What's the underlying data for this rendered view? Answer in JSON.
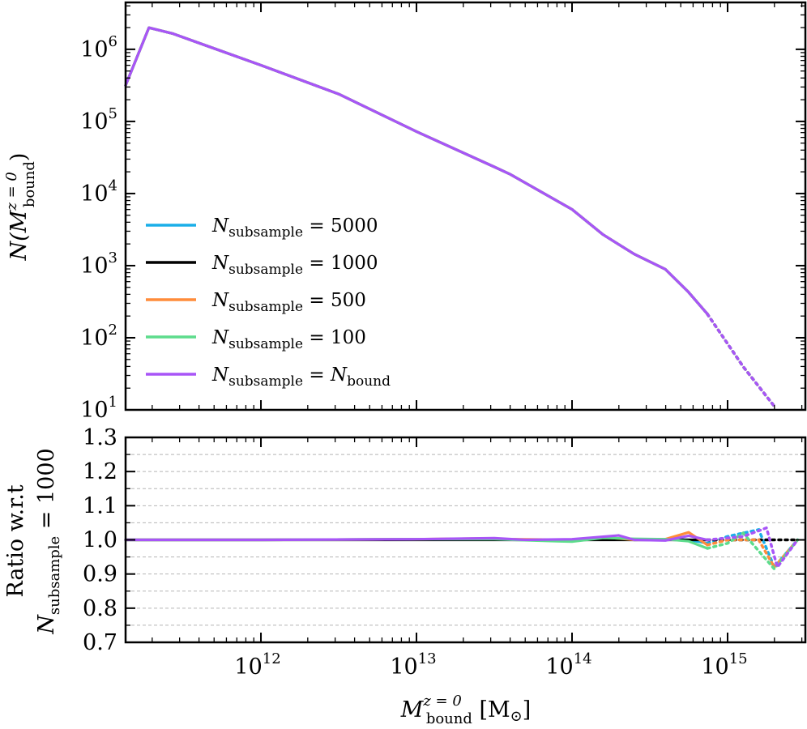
{
  "chart_data": [
    {
      "id": "top",
      "type": "line",
      "xscale": "log",
      "yscale": "log",
      "xlim_log10": [
        11.13,
        15.5
      ],
      "ylim_log10": [
        1.0,
        6.65
      ],
      "yticks": [
        {
          "exp": 1,
          "base": "10",
          "power": "1"
        },
        {
          "exp": 2,
          "base": "10",
          "power": "2"
        },
        {
          "exp": 3,
          "base": "10",
          "power": "3"
        },
        {
          "exp": 4,
          "base": "10",
          "power": "4"
        },
        {
          "exp": 5,
          "base": "10",
          "power": "5"
        },
        {
          "exp": 6,
          "base": "10",
          "power": "6"
        }
      ],
      "ylabel": {
        "main": "N(M",
        "sup": "z = 0",
        "sub": "bound",
        "close": ")"
      },
      "series": [
        {
          "name": "N_subsample = 5000",
          "color": "#1aaee8",
          "solid": [
            [
              11.13,
              5.5
            ],
            [
              11.28,
              6.3
            ],
            [
              11.43,
              6.22
            ],
            [
              12.0,
              5.78
            ],
            [
              12.5,
              5.38
            ],
            [
              13.0,
              4.86
            ],
            [
              13.5,
              4.37
            ],
            [
              13.6,
              4.27
            ],
            [
              14.0,
              3.78
            ],
            [
              14.2,
              3.43
            ],
            [
              14.4,
              3.16
            ],
            [
              14.6,
              2.95
            ],
            [
              14.75,
              2.63
            ],
            [
              14.87,
              2.33
            ]
          ],
          "dotted": [
            [
              14.87,
              2.33
            ],
            [
              15.1,
              1.6
            ],
            [
              15.3,
              1.05
            ]
          ]
        },
        {
          "name": "N_subsample = 1000",
          "color": "#000000",
          "solid": [
            [
              11.13,
              5.5
            ],
            [
              11.28,
              6.3
            ],
            [
              11.43,
              6.22
            ],
            [
              12.0,
              5.78
            ],
            [
              12.5,
              5.38
            ],
            [
              13.0,
              4.86
            ],
            [
              13.5,
              4.37
            ],
            [
              13.6,
              4.27
            ],
            [
              14.0,
              3.78
            ],
            [
              14.2,
              3.43
            ],
            [
              14.4,
              3.16
            ],
            [
              14.6,
              2.95
            ],
            [
              14.75,
              2.63
            ],
            [
              14.87,
              2.33
            ]
          ],
          "dotted": [
            [
              14.87,
              2.33
            ],
            [
              15.1,
              1.6
            ],
            [
              15.3,
              1.05
            ]
          ]
        },
        {
          "name": "N_subsample = 500",
          "color": "#ff8c3a",
          "solid": [
            [
              11.13,
              5.5
            ],
            [
              11.28,
              6.3
            ],
            [
              11.43,
              6.22
            ],
            [
              12.0,
              5.78
            ],
            [
              12.5,
              5.38
            ],
            [
              13.0,
              4.86
            ],
            [
              13.5,
              4.37
            ],
            [
              13.6,
              4.27
            ],
            [
              14.0,
              3.78
            ],
            [
              14.2,
              3.43
            ],
            [
              14.4,
              3.16
            ],
            [
              14.6,
              2.95
            ],
            [
              14.75,
              2.63
            ],
            [
              14.87,
              2.33
            ]
          ],
          "dotted": [
            [
              14.87,
              2.33
            ],
            [
              15.1,
              1.6
            ],
            [
              15.3,
              1.05
            ]
          ]
        },
        {
          "name": "N_subsample = 100",
          "color": "#5ddc8c",
          "solid": [
            [
              11.13,
              5.5
            ],
            [
              11.28,
              6.3
            ],
            [
              11.43,
              6.22
            ],
            [
              12.0,
              5.78
            ],
            [
              12.5,
              5.38
            ],
            [
              13.0,
              4.86
            ],
            [
              13.5,
              4.37
            ],
            [
              13.6,
              4.27
            ],
            [
              14.0,
              3.78
            ],
            [
              14.2,
              3.43
            ],
            [
              14.4,
              3.16
            ],
            [
              14.6,
              2.95
            ],
            [
              14.75,
              2.63
            ],
            [
              14.87,
              2.33
            ]
          ],
          "dotted": [
            [
              14.87,
              2.33
            ],
            [
              15.1,
              1.6
            ],
            [
              15.3,
              1.05
            ]
          ]
        },
        {
          "name": "N_subsample = N_bound",
          "color": "#a855f7",
          "solid": [
            [
              11.13,
              5.5
            ],
            [
              11.28,
              6.3
            ],
            [
              11.43,
              6.22
            ],
            [
              12.0,
              5.78
            ],
            [
              12.5,
              5.38
            ],
            [
              13.0,
              4.86
            ],
            [
              13.5,
              4.37
            ],
            [
              13.6,
              4.27
            ],
            [
              14.0,
              3.78
            ],
            [
              14.2,
              3.43
            ],
            [
              14.4,
              3.16
            ],
            [
              14.6,
              2.95
            ],
            [
              14.75,
              2.63
            ],
            [
              14.87,
              2.33
            ]
          ],
          "dotted": [
            [
              14.87,
              2.33
            ],
            [
              15.1,
              1.6
            ],
            [
              15.3,
              1.05
            ]
          ]
        }
      ],
      "legend": {
        "placement": "lower-left",
        "entries": [
          {
            "prefix": "N",
            "sub": "subsample",
            "eq": " = 5000",
            "tail_main": "",
            "tail_sub": "",
            "color": "#1aaee8"
          },
          {
            "prefix": "N",
            "sub": "subsample",
            "eq": " = 1000",
            "tail_main": "",
            "tail_sub": "",
            "color": "#000000"
          },
          {
            "prefix": "N",
            "sub": "subsample",
            "eq": " = 500",
            "tail_main": "",
            "tail_sub": "",
            "color": "#ff8c3a"
          },
          {
            "prefix": "N",
            "sub": "subsample",
            "eq": " = 100",
            "tail_main": "",
            "tail_sub": "",
            "color": "#5ddc8c"
          },
          {
            "prefix": "N",
            "sub": "subsample",
            "eq": " = ",
            "tail_main": "N",
            "tail_sub": "bound",
            "color": "#a855f7"
          }
        ]
      }
    },
    {
      "id": "bottom",
      "type": "line",
      "xscale": "log",
      "yscale": "linear",
      "xlim_log10": [
        11.13,
        15.5
      ],
      "ylim": [
        0.7,
        1.3
      ],
      "yticks": [
        "0.7",
        "0.8",
        "0.9",
        "1.0",
        "1.1",
        "1.2",
        "1.3"
      ],
      "xticks": [
        {
          "exp": 12,
          "base": "10",
          "power": "12"
        },
        {
          "exp": 13,
          "base": "10",
          "power": "13"
        },
        {
          "exp": 14,
          "base": "10",
          "power": "14"
        },
        {
          "exp": 15,
          "base": "10",
          "power": "15"
        }
      ],
      "grid": "horizontal dashed every 0.05",
      "ylabel_line1": "Ratio w.r.t",
      "ylabel_line2": {
        "main": "N",
        "sub": "subsample",
        "eq": " = 1000"
      },
      "xlabel": {
        "main": "M",
        "sup": "z = 0",
        "sub": "bound",
        "unit": " [M",
        "unit_sub": "⊙",
        "close": "]"
      },
      "series": [
        {
          "name": "N_subsample = 5000",
          "color": "#1aaee8",
          "solid": [
            [
              11.13,
              1.0
            ],
            [
              12.0,
              1.0
            ],
            [
              13.0,
              1.002
            ],
            [
              13.5,
              1.002
            ],
            [
              13.7,
              1.0
            ],
            [
              13.9,
              0.999
            ],
            [
              14.0,
              0.998
            ],
            [
              14.2,
              1.008
            ],
            [
              14.3,
              1.003
            ],
            [
              14.4,
              1.0
            ],
            [
              14.6,
              1.002
            ],
            [
              14.75,
              1.0
            ],
            [
              14.87,
              0.99
            ]
          ],
          "dotted": [
            [
              14.87,
              0.99
            ],
            [
              15.0,
              1.01
            ],
            [
              15.2,
              1.03
            ],
            [
              15.3,
              0.92
            ],
            [
              15.45,
              1.0
            ]
          ]
        },
        {
          "name": "N_subsample = 1000",
          "color": "#000000",
          "solid": [
            [
              11.13,
              1.0
            ],
            [
              14.87,
              1.0
            ]
          ],
          "dotted": [
            [
              14.87,
              1.0
            ],
            [
              15.45,
              1.0
            ]
          ]
        },
        {
          "name": "N_subsample = 500",
          "color": "#ff8c3a",
          "solid": [
            [
              11.13,
              1.0
            ],
            [
              12.0,
              1.0
            ],
            [
              13.0,
              1.002
            ],
            [
              13.4,
              1.004
            ],
            [
              13.6,
              1.002
            ],
            [
              14.0,
              1.0
            ],
            [
              14.2,
              1.008
            ],
            [
              14.4,
              1.0
            ],
            [
              14.6,
              1.002
            ],
            [
              14.75,
              1.022
            ],
            [
              14.87,
              0.985
            ]
          ],
          "dotted": [
            [
              14.87,
              0.985
            ],
            [
              15.0,
              1.0
            ],
            [
              15.2,
              1.0
            ],
            [
              15.3,
              0.92
            ],
            [
              15.45,
              1.0
            ]
          ]
        },
        {
          "name": "N_subsample = 100",
          "color": "#5ddc8c",
          "solid": [
            [
              11.13,
              1.0
            ],
            [
              12.0,
              1.0
            ],
            [
              13.0,
              1.002
            ],
            [
              13.5,
              1.002
            ],
            [
              13.9,
              0.996
            ],
            [
              14.0,
              0.995
            ],
            [
              14.2,
              1.006
            ],
            [
              14.4,
              1.003
            ],
            [
              14.6,
              1.002
            ],
            [
              14.75,
              0.996
            ],
            [
              14.87,
              0.975
            ]
          ],
          "dotted": [
            [
              14.87,
              0.975
            ],
            [
              15.0,
              0.99
            ],
            [
              15.1,
              1.02
            ],
            [
              15.3,
              0.915
            ],
            [
              15.45,
              1.0
            ]
          ]
        },
        {
          "name": "N_subsample = N_bound",
          "color": "#a855f7",
          "solid": [
            [
              11.13,
              1.0
            ],
            [
              12.0,
              1.0
            ],
            [
              13.0,
              1.002
            ],
            [
              13.5,
              1.005
            ],
            [
              13.7,
              1.0
            ],
            [
              14.0,
              1.002
            ],
            [
              14.3,
              1.013
            ],
            [
              14.4,
              1.0
            ],
            [
              14.6,
              0.998
            ],
            [
              14.75,
              1.012
            ],
            [
              14.87,
              1.0
            ]
          ],
          "dotted": [
            [
              14.87,
              1.0
            ],
            [
              15.1,
              1.01
            ],
            [
              15.25,
              1.035
            ],
            [
              15.32,
              0.92
            ],
            [
              15.45,
              1.0
            ]
          ]
        }
      ]
    }
  ]
}
